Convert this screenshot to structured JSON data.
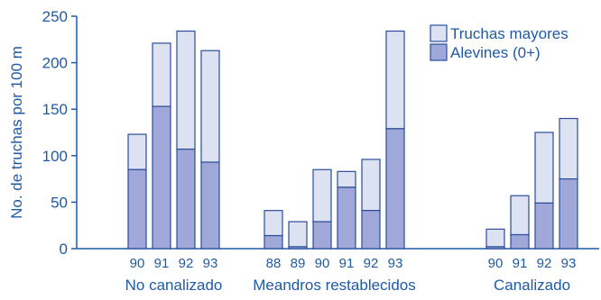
{
  "chart_data": {
    "type": "bar",
    "stacked": true,
    "ylabel": "No. de truchas por 100 m",
    "ylim": [
      0,
      250
    ],
    "yticks": [
      0,
      50,
      100,
      150,
      200,
      250
    ],
    "grid": false,
    "legend_position": "top-right",
    "series": [
      {
        "name": "Truchas mayores",
        "color": "#dde2f2"
      },
      {
        "name": "Alevines (0+)",
        "color": "#9fa8d8"
      }
    ],
    "groups": [
      {
        "label": "No canalizado",
        "bars": [
          {
            "x": "90",
            "alevines": 85,
            "mayores": 38
          },
          {
            "x": "91",
            "alevines": 153,
            "mayores": 68
          },
          {
            "x": "92",
            "alevines": 107,
            "mayores": 127
          },
          {
            "x": "93",
            "alevines": 93,
            "mayores": 120
          }
        ]
      },
      {
        "label": "Meandros restablecidos",
        "bars": [
          {
            "x": "88",
            "alevines": 14,
            "mayores": 27
          },
          {
            "x": "89",
            "alevines": 2,
            "mayores": 27
          },
          {
            "x": "90",
            "alevines": 29,
            "mayores": 56
          },
          {
            "x": "91",
            "alevines": 66,
            "mayores": 17
          },
          {
            "x": "92",
            "alevines": 41,
            "mayores": 55
          },
          {
            "x": "93",
            "alevines": 129,
            "mayores": 105
          }
        ]
      },
      {
        "label": "Canalizado",
        "bars": [
          {
            "x": "90",
            "alevines": 2,
            "mayores": 19
          },
          {
            "x": "91",
            "alevines": 15,
            "mayores": 42
          },
          {
            "x": "92",
            "alevines": 49,
            "mayores": 76
          },
          {
            "x": "93",
            "alevines": 75,
            "mayores": 65
          }
        ]
      }
    ]
  }
}
